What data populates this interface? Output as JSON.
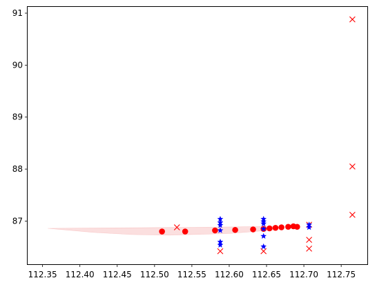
{
  "chart_data": {
    "type": "scatter",
    "title": "",
    "xlabel": "",
    "ylabel": "",
    "xlim": [
      112.33,
      112.785
    ],
    "ylim": [
      86.17,
      91.12
    ],
    "x_ticks": [
      112.35,
      112.4,
      112.45,
      112.5,
      112.55,
      112.6,
      112.65,
      112.7,
      112.75
    ],
    "x_tick_labels": [
      "112.35",
      "112.40",
      "112.45",
      "112.50",
      "112.55",
      "112.60",
      "112.65",
      "112.70",
      "112.75"
    ],
    "y_ticks": [
      87,
      88,
      89,
      90,
      91
    ],
    "y_tick_labels": [
      "87",
      "88",
      "89",
      "90",
      "91"
    ],
    "grid": false,
    "colors": {
      "dots": "#ff0000",
      "crosses": "#ff0000",
      "stars": "#0000ff",
      "band": "#f08080"
    },
    "band": {
      "upper": [
        [
          112.357,
          86.86
        ],
        [
          112.45,
          86.87
        ],
        [
          112.55,
          86.88
        ],
        [
          112.62,
          86.89
        ],
        [
          112.66,
          86.9
        ]
      ],
      "lower": [
        [
          112.357,
          86.86
        ],
        [
          112.42,
          86.78
        ],
        [
          112.47,
          86.74
        ],
        [
          112.52,
          86.73
        ],
        [
          112.6,
          86.76
        ],
        [
          112.66,
          86.83
        ]
      ]
    },
    "series": [
      {
        "marker": "dot",
        "points": [
          [
            112.51,
            86.8
          ],
          [
            112.541,
            86.8
          ],
          [
            112.581,
            86.82
          ],
          [
            112.608,
            86.83
          ],
          [
            112.632,
            86.84
          ],
          [
            112.646,
            86.85
          ],
          [
            112.654,
            86.86
          ],
          [
            112.662,
            86.87
          ],
          [
            112.67,
            86.88
          ],
          [
            112.679,
            86.89
          ],
          [
            112.686,
            86.9
          ],
          [
            112.691,
            86.89
          ]
        ]
      },
      {
        "marker": "cross",
        "points": [
          [
            112.53,
            86.88
          ],
          [
            112.588,
            86.42
          ],
          [
            112.646,
            86.42
          ],
          [
            112.707,
            86.47
          ],
          [
            112.707,
            86.64
          ],
          [
            112.707,
            86.93
          ],
          [
            112.765,
            87.12
          ],
          [
            112.765,
            88.05
          ],
          [
            112.765,
            90.88
          ]
        ]
      },
      {
        "marker": "star",
        "points": [
          [
            112.588,
            87.04
          ],
          [
            112.588,
            86.97
          ],
          [
            112.588,
            86.92
          ],
          [
            112.588,
            86.82
          ],
          [
            112.588,
            86.6
          ],
          [
            112.588,
            86.54
          ],
          [
            112.646,
            87.04
          ],
          [
            112.646,
            86.99
          ],
          [
            112.646,
            86.95
          ],
          [
            112.646,
            86.85
          ],
          [
            112.646,
            86.71
          ],
          [
            112.646,
            86.51
          ],
          [
            112.707,
            86.93
          ],
          [
            112.707,
            86.88
          ]
        ]
      }
    ]
  }
}
